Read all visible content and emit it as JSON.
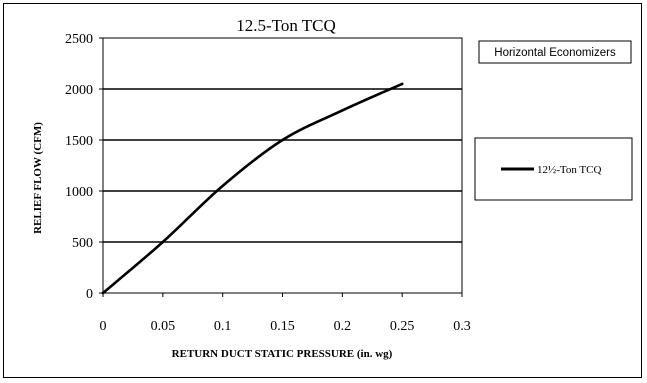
{
  "chart_data": {
    "type": "line",
    "title": "12.5-Ton TCQ",
    "xlabel": "RETURN DUCT STATIC PRESSURE (in. wg)",
    "ylabel": "RELIEF FLOW (CFM)",
    "xlim": [
      0,
      0.3
    ],
    "ylim": [
      0,
      2500
    ],
    "x_ticks": [
      "0",
      "0.05",
      "0.1",
      "0.15",
      "0.2",
      "0.25",
      "0.3"
    ],
    "y_ticks": [
      "0",
      "500",
      "1000",
      "1500",
      "2000",
      "2500"
    ],
    "grid": "horizontal",
    "annotation": "Horizontal Economizers",
    "legend_position": "right",
    "series": [
      {
        "name": "12½-Ton TCQ",
        "x": [
          0,
          0.05,
          0.1,
          0.15,
          0.2,
          0.25
        ],
        "y": [
          0,
          500,
          1050,
          1500,
          1790,
          2050
        ]
      }
    ],
    "colors": {
      "line": "#000000"
    }
  }
}
